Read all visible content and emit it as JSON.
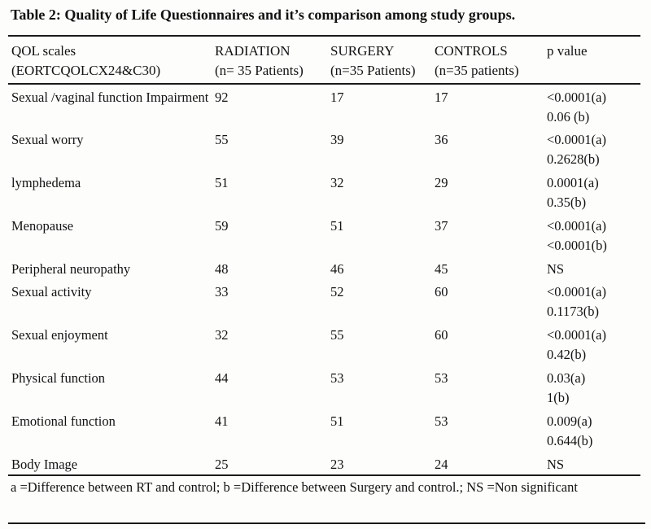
{
  "title": "Table 2: Quality of Life Questionnaires and it’s comparison among study groups.",
  "table": {
    "columns": [
      {
        "line1": "QOL scales",
        "line2": "(EORTCQOLCX24&C30)"
      },
      {
        "line1": "RADIATION",
        "line2": "(n= 35 Patients)"
      },
      {
        "line1": "SURGERY",
        "line2": "(n=35 Patients)"
      },
      {
        "line1": "CONTROLS",
        "line2": "(n=35 patients)"
      },
      {
        "line1": "p value",
        "line2": ""
      }
    ],
    "rows": [
      {
        "scale": "Sexual /vaginal function Impairment",
        "radiation": "92",
        "surgery": "17",
        "controls": "17",
        "p_a": "<0.0001(a)",
        "p_b": "0.06 (b)"
      },
      {
        "scale": "Sexual worry",
        "radiation": "55",
        "surgery": "39",
        "controls": "36",
        "p_a": "<0.0001(a)",
        "p_b": "0.2628(b)"
      },
      {
        "scale": "lymphedema",
        "radiation": "51",
        "surgery": "32",
        "controls": "29",
        "p_a": "0.0001(a)",
        "p_b": "0.35(b)"
      },
      {
        "scale": "Menopause",
        "radiation": "59",
        "surgery": "51",
        "controls": "37",
        "p_a": "<0.0001(a)",
        "p_b": "<0.0001(b)"
      },
      {
        "scale": "Peripheral neuropathy",
        "radiation": "48",
        "surgery": "46",
        "controls": "45",
        "p_a": "NS",
        "p_b": ""
      },
      {
        "scale": "Sexual activity",
        "radiation": "33",
        "surgery": "52",
        "controls": "60",
        "p_a": "<0.0001(a)",
        "p_b": "0.1173(b)"
      },
      {
        "scale": "Sexual enjoyment",
        "radiation": "32",
        "surgery": "55",
        "controls": "60",
        "p_a": "<0.0001(a)",
        "p_b": "0.42(b)"
      },
      {
        "scale": "Physical function",
        "radiation": "44",
        "surgery": "53",
        "controls": "53",
        "p_a": "0.03(a)",
        "p_b": "1(b)"
      },
      {
        "scale": "Emotional function",
        "radiation": "41",
        "surgery": "51",
        "controls": "53",
        "p_a": "0.009(a)",
        "p_b": "0.644(b)"
      },
      {
        "scale": "Body Image",
        "radiation": "25",
        "surgery": "23",
        "controls": "24",
        "p_a": "NS",
        "p_b": ""
      }
    ]
  },
  "footnote": "a =Difference between RT and control; b =Difference between Surgery and control.; NS =Non significant"
}
